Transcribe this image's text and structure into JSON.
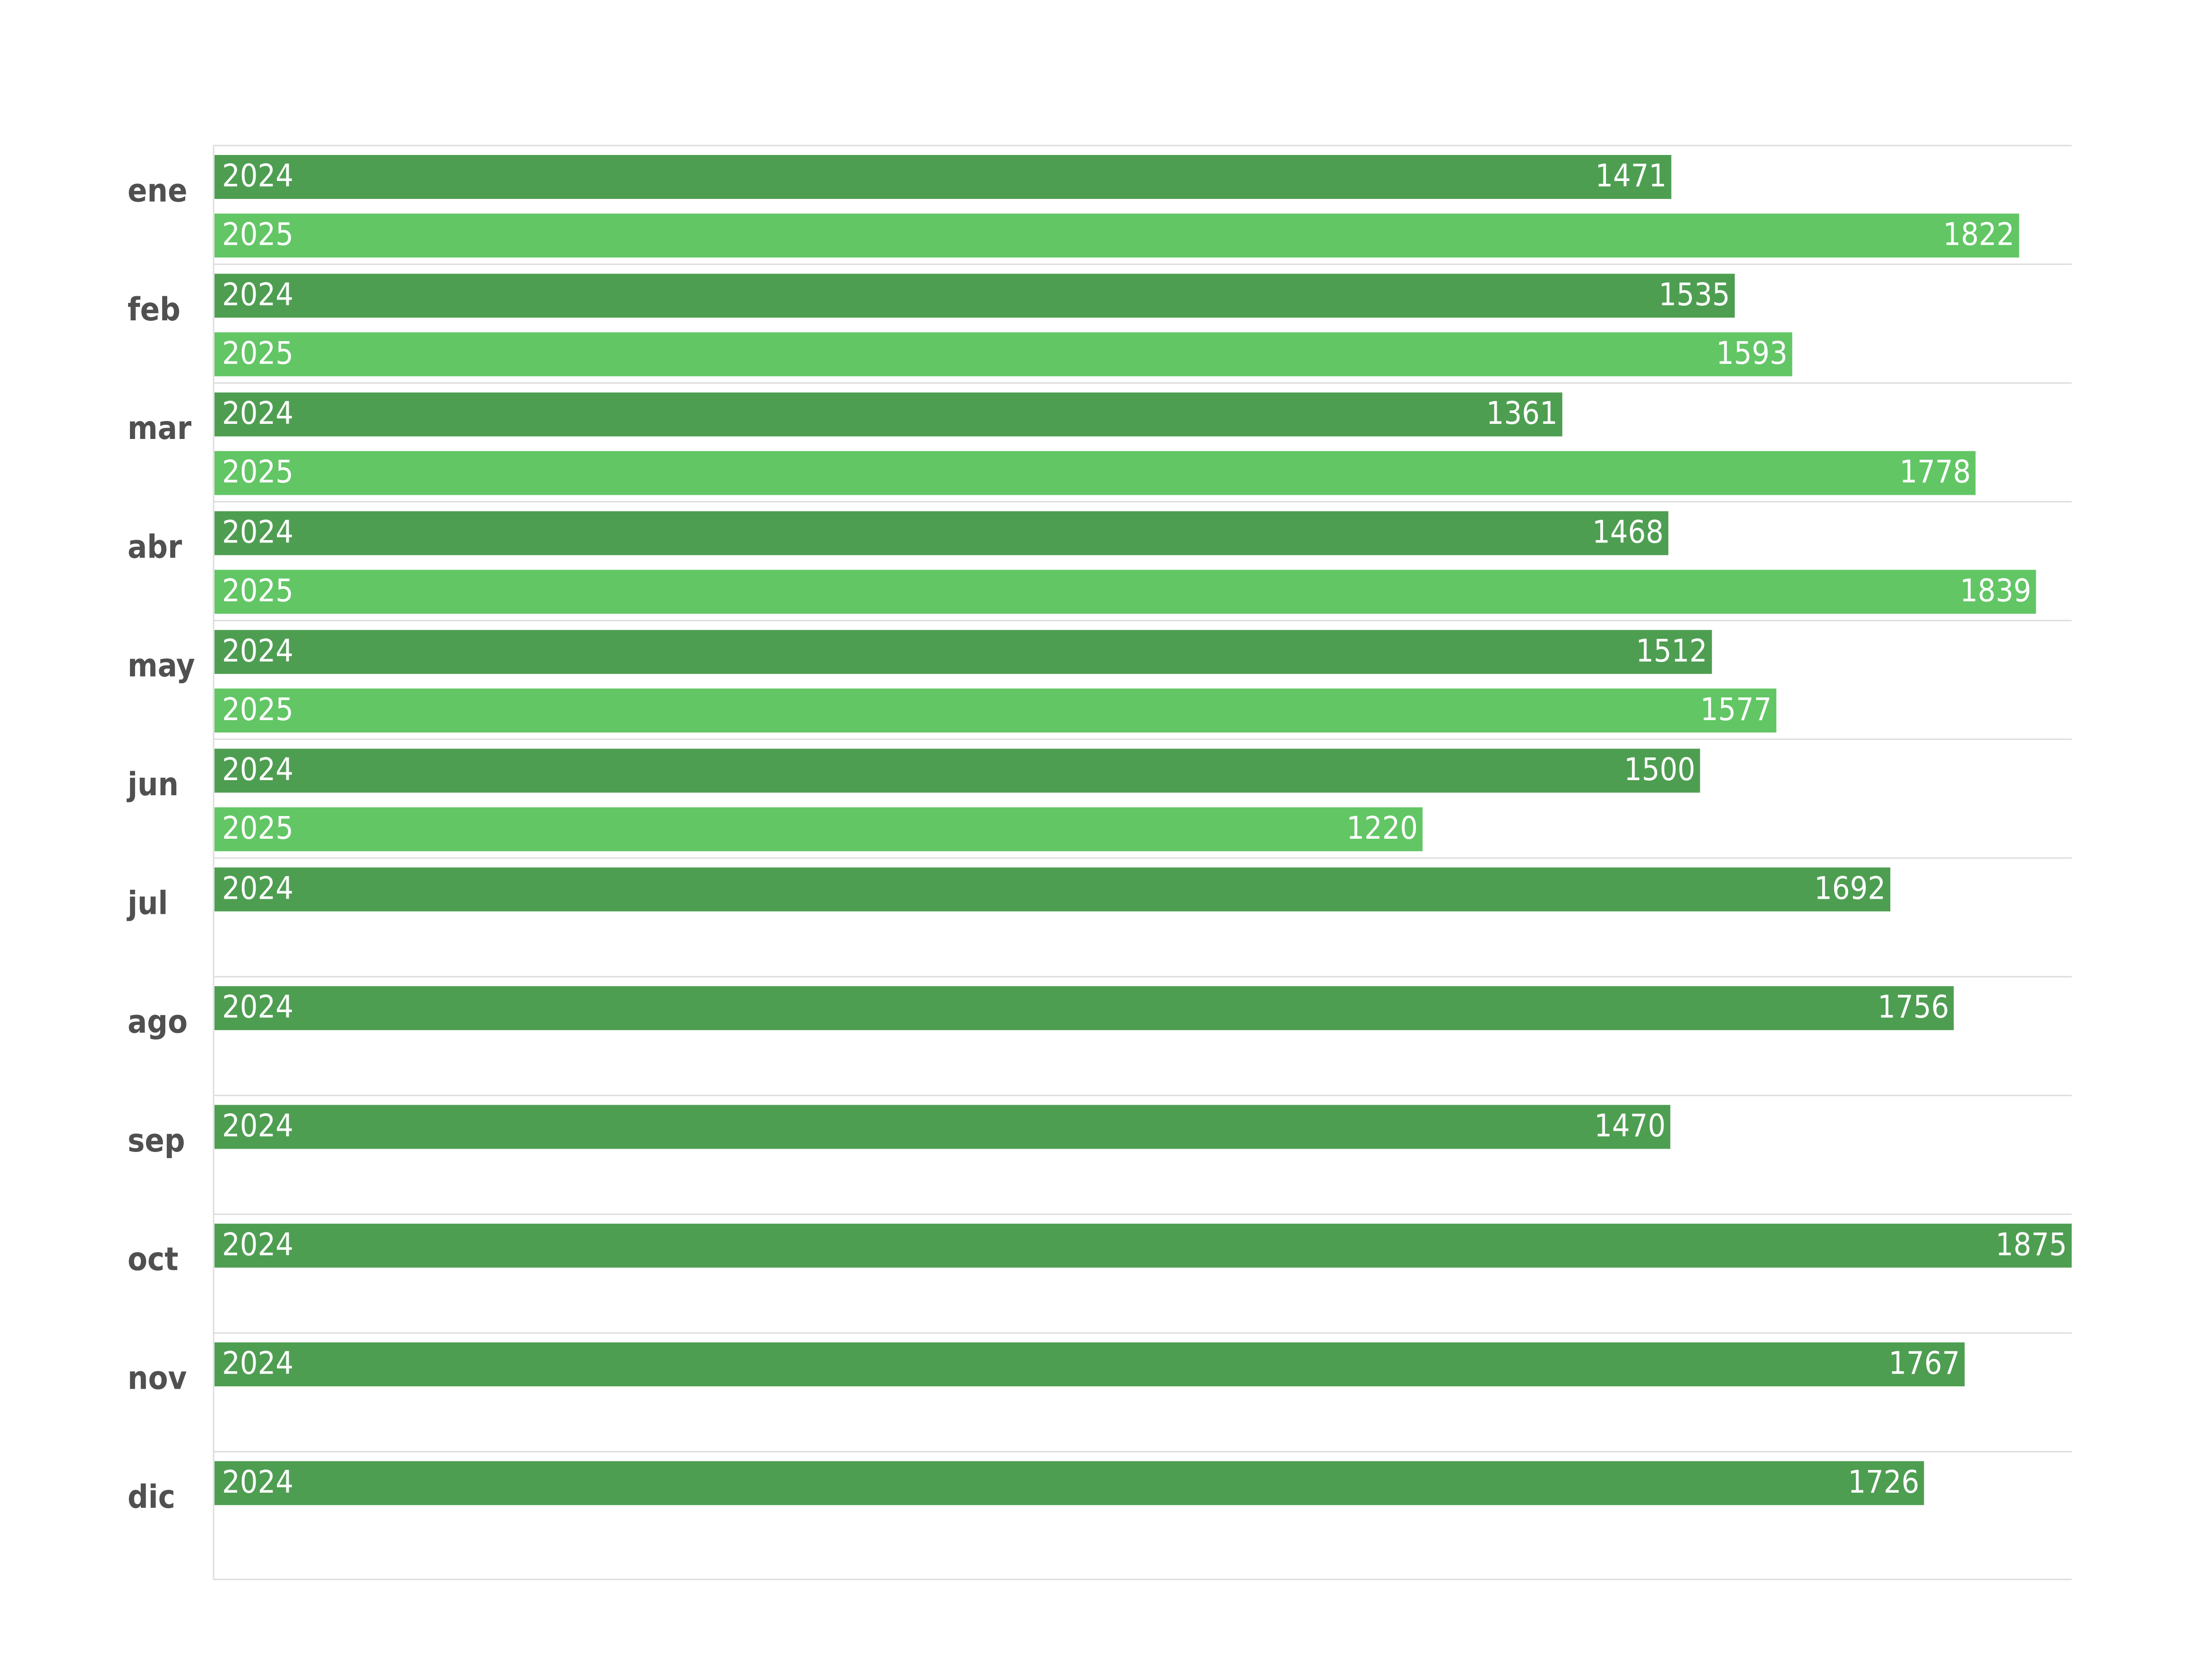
{
  "colors": {
    "series_2024": "#4e9e51",
    "series_2025": "#62c665",
    "grid": "#dddddd",
    "axis_label": "#505050",
    "bar_text": "#ffffff"
  },
  "chart_data": {
    "type": "bar",
    "orientation": "horizontal",
    "title": "",
    "xlabel": "",
    "ylabel": "",
    "categories": [
      "ene",
      "feb",
      "mar",
      "abr",
      "may",
      "jun",
      "jul",
      "ago",
      "sep",
      "oct",
      "nov",
      "dic"
    ],
    "series": [
      {
        "name": "2024",
        "values": [
          1471,
          1535,
          1361,
          1468,
          1512,
          1500,
          1692,
          1756,
          1470,
          1875,
          1767,
          1726
        ]
      },
      {
        "name": "2025",
        "values": [
          1822,
          1593,
          1778,
          1839,
          1577,
          1220,
          null,
          null,
          null,
          null,
          null,
          null
        ]
      }
    ],
    "xlim": [
      0,
      1875
    ],
    "grid": true,
    "legend": "none",
    "data_labels": true
  }
}
